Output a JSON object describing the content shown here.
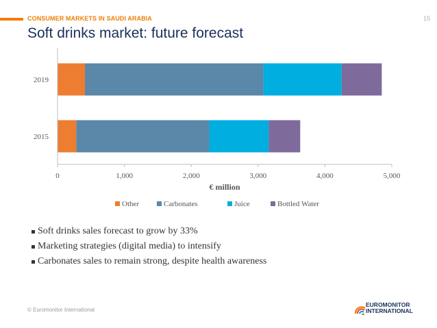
{
  "header": {
    "section_label": "CONSUMER MARKETS IN SAUDI ARABIA",
    "page_number": "15",
    "title": "Soft drinks market: future forecast"
  },
  "chart_data": {
    "type": "bar",
    "orientation": "horizontal",
    "stacked": true,
    "categories": [
      "2019",
      "2015"
    ],
    "series": [
      {
        "name": "Other",
        "color": "#ed7d31",
        "values": [
          410,
          280
        ]
      },
      {
        "name": "Carbonates",
        "color": "#5b87a8",
        "values": [
          2670,
          1990
        ]
      },
      {
        "name": "Juice",
        "color": "#00aee0",
        "values": [
          1170,
          890
        ]
      },
      {
        "name": "Bottled Water",
        "color": "#7f6a9c",
        "values": [
          600,
          470
        ]
      }
    ],
    "xlabel": "€ million",
    "ylabel": "",
    "xlim": [
      0,
      5000
    ],
    "xticks": [
      "0",
      "1,000",
      "2,000",
      "3,000",
      "4,000",
      "5,000"
    ],
    "legend_position": "bottom"
  },
  "bullets": [
    "Soft drinks sales forecast to grow by 33%",
    "Marketing strategies (digital media) to intensify",
    "Carbonates sales to remain strong, despite health awareness"
  ],
  "footer": {
    "copyright": "© Euromonitor International"
  },
  "logo": {
    "line1": "EUROMONITOR",
    "line2": "INTERNATIONAL"
  },
  "colors": {
    "accent": "#f07d00",
    "title": "#1a2f5a"
  }
}
